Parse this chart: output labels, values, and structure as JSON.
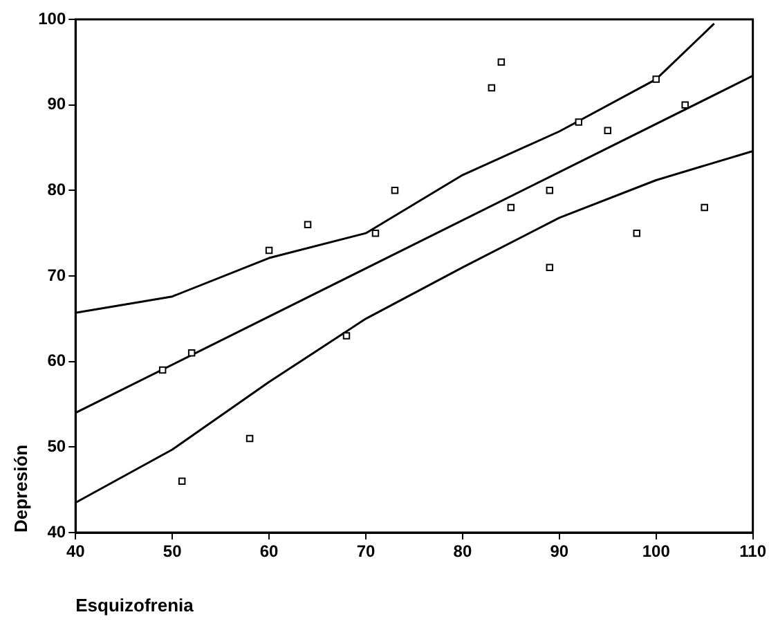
{
  "chart_data": {
    "type": "scatter",
    "xlabel": "Esquizofrenia",
    "ylabel": "Depresión",
    "xlim": [
      40,
      110
    ],
    "ylim": [
      40,
      100
    ],
    "xticks": [
      40,
      50,
      60,
      70,
      80,
      90,
      100,
      110
    ],
    "yticks": [
      40,
      50,
      60,
      70,
      80,
      90,
      100
    ],
    "grid": false,
    "legend": false,
    "series": [
      {
        "type": "scatter",
        "color": "#000000",
        "marker": "square",
        "x": [
          49,
          52,
          51,
          58,
          60,
          64,
          68,
          71,
          73,
          83,
          84,
          85,
          89,
          89,
          92,
          95,
          98,
          100,
          103,
          105
        ],
        "values": [
          59,
          61,
          46,
          51,
          73,
          76,
          63,
          75,
          80,
          92,
          95,
          78,
          80,
          71,
          88,
          87,
          75,
          93,
          90,
          78
        ]
      },
      {
        "type": "line",
        "color": "#000000",
        "marker": "none",
        "line_style": "solid",
        "x": [
          40,
          110
        ],
        "values": [
          54.0,
          93.4
        ]
      },
      {
        "type": "line",
        "color": "#000000",
        "marker": "none",
        "line_style": "solid",
        "x": [
          40,
          50,
          60,
          70,
          80,
          90,
          100,
          106
        ],
        "values": [
          65.7,
          67.6,
          72.1,
          75.0,
          81.8,
          86.9,
          93.0,
          99.5
        ]
      },
      {
        "type": "line",
        "color": "#000000",
        "marker": "none",
        "line_style": "solid",
        "x": [
          40,
          50,
          60,
          70,
          80,
          90,
          100,
          110
        ],
        "values": [
          43.5,
          49.7,
          57.6,
          65.0,
          71.0,
          76.8,
          81.2,
          84.6
        ]
      }
    ]
  }
}
